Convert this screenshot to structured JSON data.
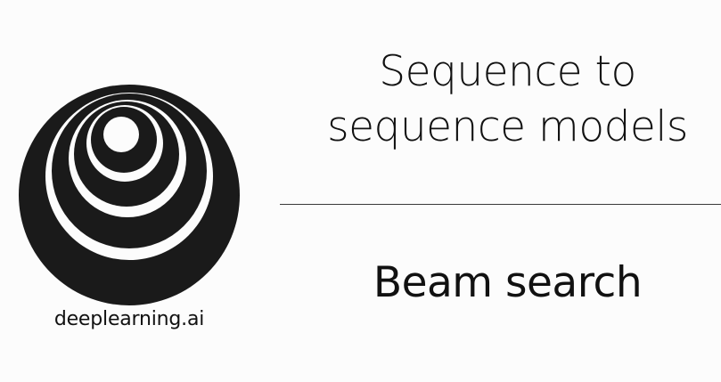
{
  "slide": {
    "title_lines": [
      "Sequence to",
      "sequence models"
    ],
    "subtitle": "Beam search",
    "brand_text": "deeplearning.ai",
    "colors": {
      "background": "#fcfcfc",
      "text": "#111111",
      "logo": "#1a1a1a",
      "divider": "#3a3a3a"
    },
    "logo_icon": "deeplearning-ai-logo-icon"
  }
}
